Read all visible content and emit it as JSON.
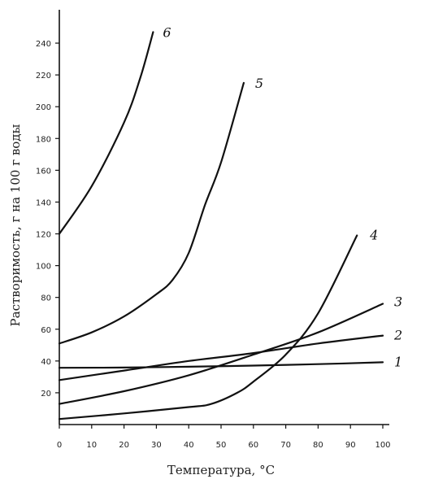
{
  "chart_data": {
    "type": "line",
    "title": "",
    "xlabel": "Температура, °С",
    "ylabel": "Растворимость, г на 100 г воды",
    "xlim": [
      0,
      100
    ],
    "ylim": [
      0,
      250
    ],
    "xticks": [
      "0",
      "10",
      "20",
      "30",
      "40",
      "50",
      "60",
      "70",
      "80",
      "90",
      "100"
    ],
    "yticks": [
      "20",
      "40",
      "60",
      "80",
      "100",
      "120",
      "140",
      "160",
      "180",
      "200",
      "220",
      "240"
    ],
    "grid": false,
    "legend": "none",
    "series": [
      {
        "name": "1",
        "x": [
          0,
          20,
          40,
          60,
          80,
          100
        ],
        "y": [
          35.7,
          35.9,
          36.4,
          37.1,
          38.0,
          39.2
        ]
      },
      {
        "name": "2",
        "x": [
          0,
          20,
          40,
          60,
          80,
          100
        ],
        "y": [
          28,
          34,
          40,
          45,
          51,
          56
        ]
      },
      {
        "name": "3",
        "x": [
          0,
          20,
          40,
          60,
          80,
          100
        ],
        "y": [
          13,
          21,
          31,
          44,
          58,
          76
        ]
      },
      {
        "name": "4",
        "x": [
          0,
          20,
          40,
          47,
          55,
          60,
          70,
          80,
          92
        ],
        "y": [
          3.5,
          7,
          11,
          13,
          20,
          27,
          44,
          70,
          119
        ]
      },
      {
        "name": "5",
        "x": [
          0,
          10,
          20,
          30,
          35,
          40,
          45,
          50,
          57
        ],
        "y": [
          51,
          58,
          68,
          82,
          91,
          108,
          138,
          165,
          215
        ]
      },
      {
        "name": "6",
        "x": [
          0,
          10,
          20,
          25,
          29
        ],
        "y": [
          120,
          150,
          190,
          218,
          247
        ]
      }
    ]
  }
}
